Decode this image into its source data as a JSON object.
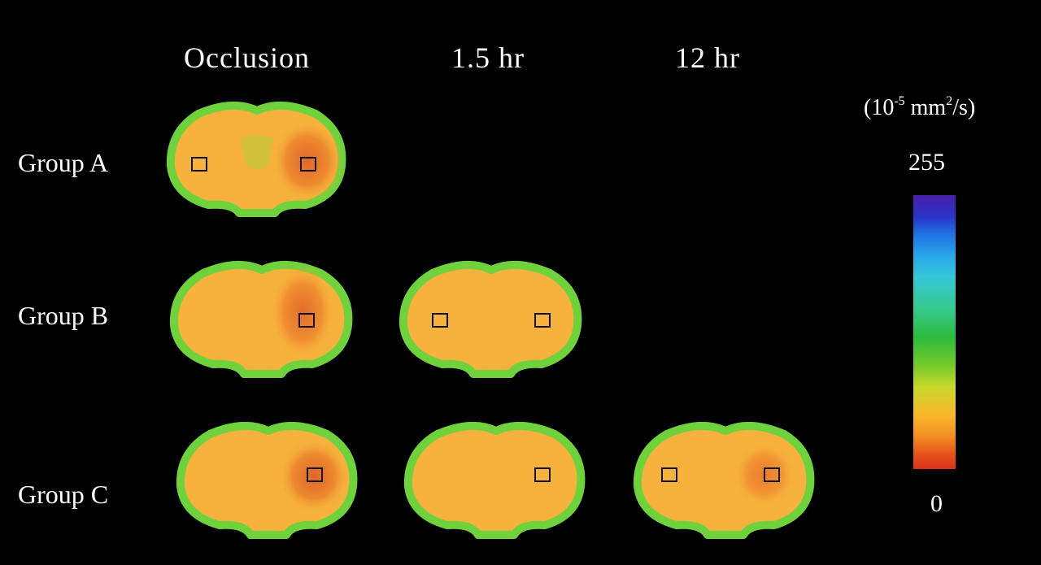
{
  "columns": [
    "Occlusion",
    "1.5 hr",
    "12 hr"
  ],
  "rows": [
    "Group A",
    "Group B",
    "Group C"
  ],
  "colorbar": {
    "unit_prefix": "(10",
    "unit_exp1": "-5",
    "unit_mid": " mm",
    "unit_exp2": "2",
    "unit_suffix": "/s)",
    "max": "255",
    "min": "0"
  },
  "colors": {
    "background": "#000000",
    "tissue": "#f6b23c",
    "edge": "#6fd23c",
    "lesion": "#e8772e"
  },
  "slices": [
    {
      "group": "Group A",
      "time": "Occlusion",
      "lesion": true,
      "roi_boxes": 2
    },
    {
      "group": "Group B",
      "time": "Occlusion",
      "lesion": true,
      "roi_boxes": 1
    },
    {
      "group": "Group B",
      "time": "1.5 hr",
      "lesion": false,
      "roi_boxes": 2
    },
    {
      "group": "Group C",
      "time": "Occlusion",
      "lesion": true,
      "roi_boxes": 1
    },
    {
      "group": "Group C",
      "time": "1.5 hr",
      "lesion": false,
      "roi_boxes": 1
    },
    {
      "group": "Group C",
      "time": "12 hr",
      "lesion": true,
      "roi_boxes": 2
    }
  ]
}
